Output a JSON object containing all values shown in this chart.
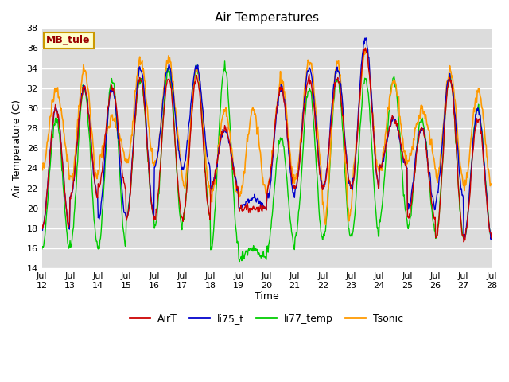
{
  "title": "Air Temperatures",
  "xlabel": "Time",
  "ylabel": "Air Temperature (C)",
  "ylim": [
    14,
    38
  ],
  "yticks": [
    14,
    16,
    18,
    20,
    22,
    24,
    26,
    28,
    30,
    32,
    34,
    36,
    38
  ],
  "x_tick_labels": [
    "Jul\n12",
    "Jul\n13",
    "Jul\n14",
    "Jul\n15",
    "Jul\n16",
    "Jul\n17",
    "Jul\n18",
    "Jul\n19",
    "Jul\n20",
    "Jul\n21",
    "Jul\n22",
    "Jul\n23",
    "Jul\n24",
    "Jul\n25",
    "Jul\n26",
    "Jul\n27",
    "Jul\n28"
  ],
  "colors": {
    "AirT": "#cc0000",
    "li75_t": "#0000cc",
    "li77_temp": "#00cc00",
    "Tsonic": "#ff9900"
  },
  "bg_color": "#dcdcdc",
  "grid_color": "#ffffff",
  "annotation_text": "MB_tule",
  "annotation_bg": "#ffffcc",
  "annotation_border": "#cc9900",
  "annotation_text_color": "#990000"
}
